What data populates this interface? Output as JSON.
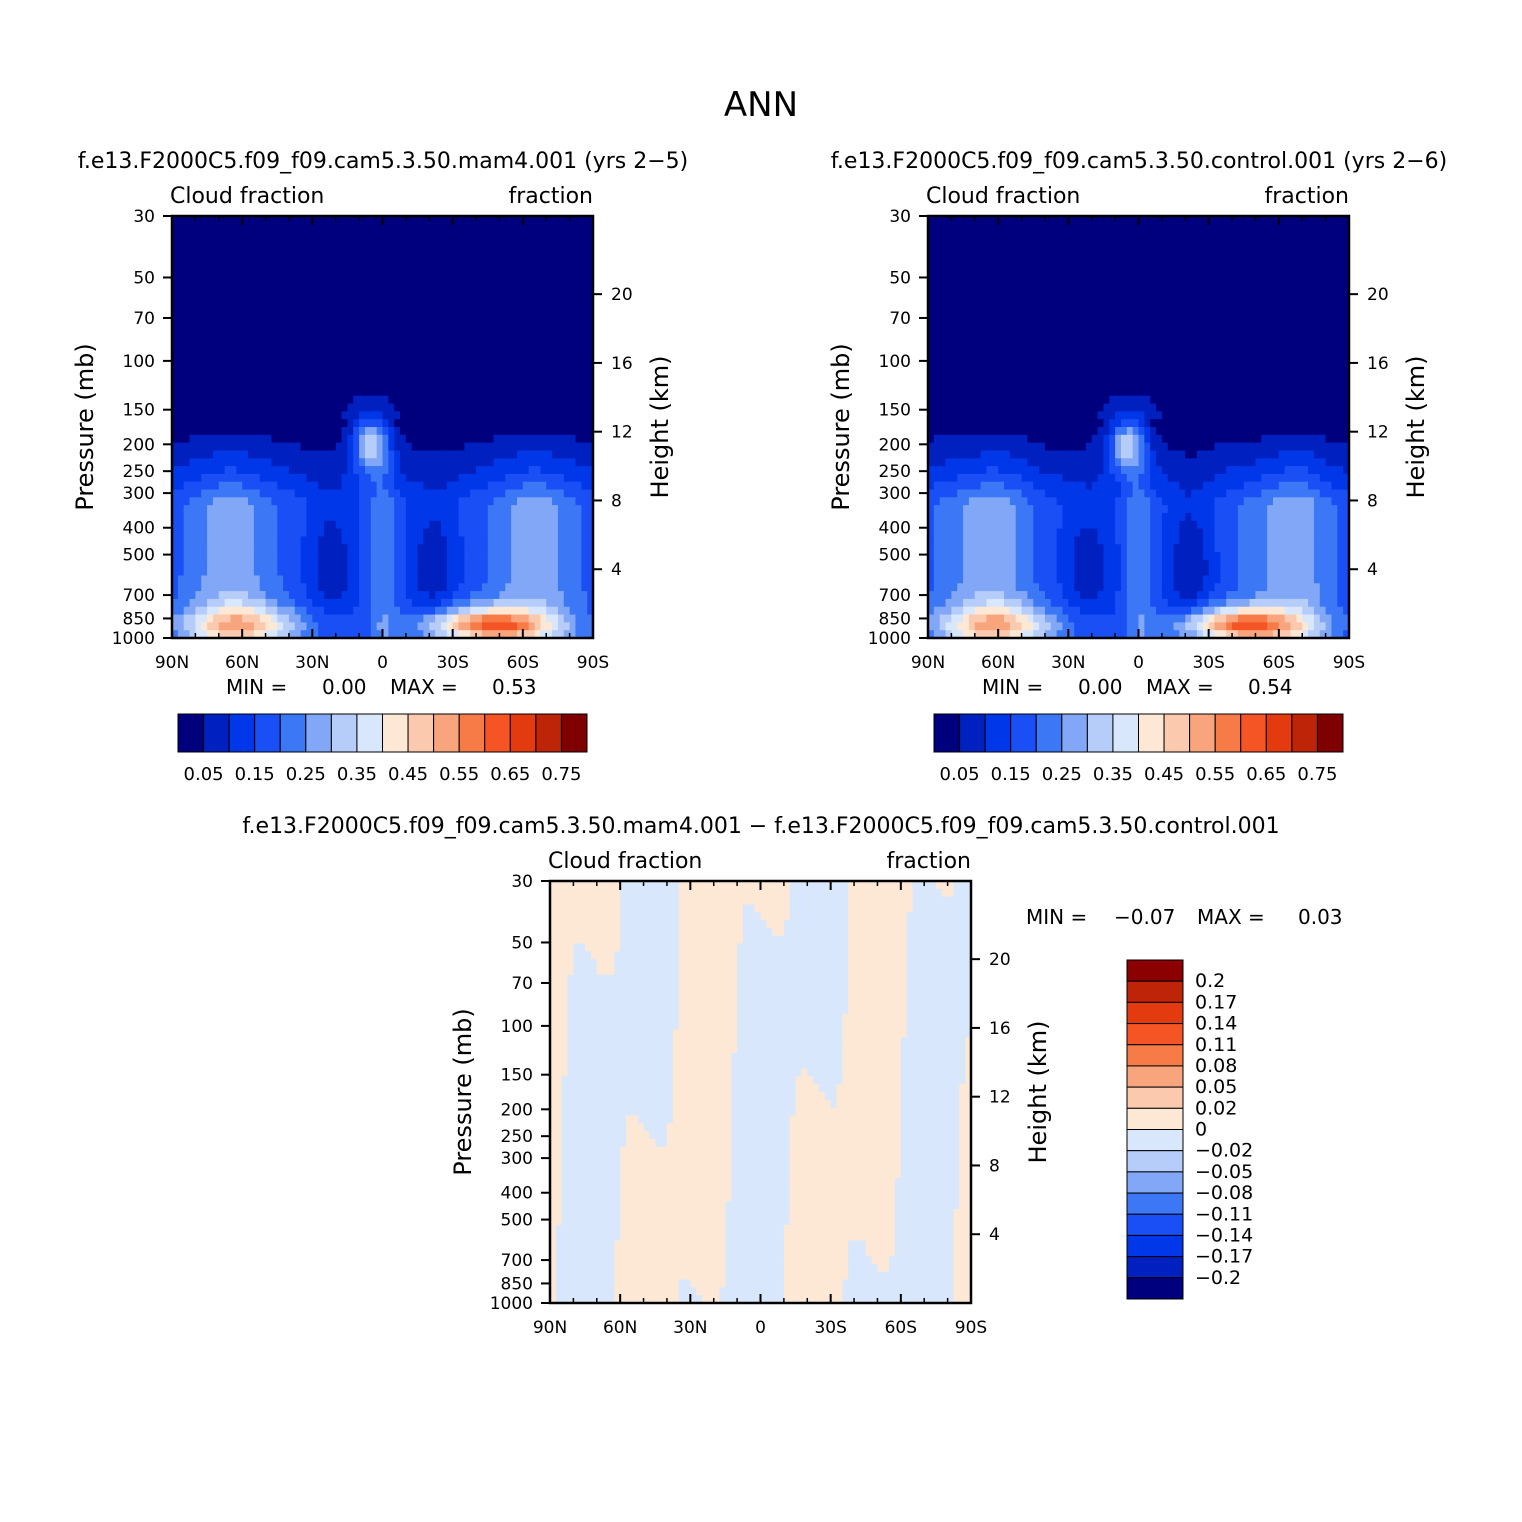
{
  "figure": {
    "title": "ANN",
    "season": "ANN"
  },
  "palettes": {
    "abs_colors": [
      "#00007f",
      "#0020c0",
      "#0037e8",
      "#1a4ff5",
      "#3c78f5",
      "#82a7f7",
      "#b6cdf9",
      "#d8e7fb",
      "#fde8d6",
      "#fbc9ad",
      "#f8a47d",
      "#f77b47",
      "#f55424",
      "#e43a10",
      "#bd2408",
      "#7e0000"
    ],
    "abs_labels": [
      "0.05",
      "0.15",
      "0.25",
      "0.35",
      "0.45",
      "0.55",
      "0.65",
      "0.75"
    ],
    "diff_colors": [
      "#00007f",
      "#0020c0",
      "#0037e8",
      "#1a4ff5",
      "#3c78f5",
      "#82a7f7",
      "#b6cdf9",
      "#d8e7fb",
      "#fde8d6",
      "#fbc9ad",
      "#f8a47d",
      "#f77b47",
      "#f55424",
      "#e43a10",
      "#bd2408",
      "#8b0000"
    ],
    "diff_labels": [
      "0.2",
      "0.17",
      "0.14",
      "0.11",
      "0.08",
      "0.05",
      "0.02",
      "0",
      "-0.02",
      "-0.05",
      "-0.08",
      "-0.11",
      "-0.14",
      "-0.17",
      "-0.2"
    ]
  },
  "chart_data": [
    {
      "type": "heatmap",
      "id": "case",
      "title": "f.e13.F2000C5.f09_f09.cam5.3.50.mam4.001 (yrs 2-5)",
      "left_label": "Cloud fraction",
      "right_label": "fraction",
      "ylabel": "Pressure (mb)",
      "y2label": "Height (km)",
      "x_ticks": [
        "90N",
        "60N",
        "30N",
        "0",
        "30S",
        "60S",
        "90S"
      ],
      "xlim": [
        -90,
        90
      ],
      "y_ticks": [
        "30",
        "50",
        "70",
        "100",
        "150",
        "200",
        "250",
        "300",
        "400",
        "500",
        "700",
        "850",
        "1000"
      ],
      "ylim": [
        1000,
        30
      ],
      "y2_ticks": [
        "20",
        "16",
        "12",
        "8",
        "4"
      ],
      "min_label": "MIN =",
      "min_value": "0.00",
      "max_label": "MAX =",
      "max_value": "0.53",
      "range": [
        0.0,
        0.53
      ]
    },
    {
      "type": "heatmap",
      "id": "control",
      "title": "f.e13.F2000C5.f09_f09.cam5.3.50.control.001 (yrs 2-6)",
      "left_label": "Cloud fraction",
      "right_label": "fraction",
      "ylabel": "Pressure (mb)",
      "y2label": "Height (km)",
      "x_ticks": [
        "90N",
        "60N",
        "30N",
        "0",
        "30S",
        "60S",
        "90S"
      ],
      "xlim": [
        -90,
        90
      ],
      "y_ticks": [
        "30",
        "50",
        "70",
        "100",
        "150",
        "200",
        "250",
        "300",
        "400",
        "500",
        "700",
        "850",
        "1000"
      ],
      "ylim": [
        1000,
        30
      ],
      "y2_ticks": [
        "20",
        "16",
        "12",
        "8",
        "4"
      ],
      "min_label": "MIN =",
      "min_value": "0.00",
      "max_label": "MAX =",
      "max_value": "0.54",
      "range": [
        0.0,
        0.54
      ]
    },
    {
      "type": "heatmap",
      "id": "diff",
      "title": "f.e13.F2000C5.f09_f09.cam5.3.50.mam4.001 - f.e13.F2000C5.f09_f09.cam5.3.50.control.001",
      "left_label": "Cloud fraction",
      "right_label": "fraction",
      "ylabel": "Pressure (mb)",
      "y2label": "Height (km)",
      "x_ticks": [
        "90N",
        "60N",
        "30N",
        "0",
        "30S",
        "60S",
        "90S"
      ],
      "xlim": [
        -90,
        90
      ],
      "y_ticks": [
        "30",
        "50",
        "70",
        "100",
        "150",
        "200",
        "250",
        "300",
        "400",
        "500",
        "700",
        "850",
        "1000"
      ],
      "ylim": [
        1000,
        30
      ],
      "y2_ticks": [
        "20",
        "16",
        "12",
        "8",
        "4"
      ],
      "min_label": "MIN =",
      "min_value": "-0.07",
      "max_label": "MAX =",
      "max_value": "0.03",
      "range": [
        -0.07,
        0.03
      ]
    }
  ]
}
